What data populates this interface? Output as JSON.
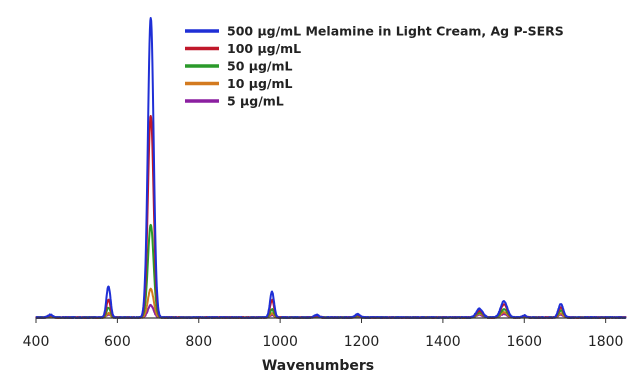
{
  "chart_data": {
    "type": "line",
    "xlabel": "Wavenumbers",
    "ylabel": "",
    "xlim": [
      400,
      1850
    ],
    "x_ticks": [
      400,
      600,
      800,
      1000,
      1200,
      1400,
      1600,
      1800
    ],
    "grid": false,
    "legend_position": "top-right",
    "peak_positions": [
      435,
      578,
      682,
      980,
      1090,
      1190,
      1490,
      1550,
      1600,
      1690
    ],
    "peak_widths": [
      6,
      5,
      7,
      5,
      6,
      6,
      8,
      8,
      5,
      6
    ],
    "series": [
      {
        "name": "500 µg/mL Melamine in Light Cream, Ag P-SERS",
        "color": "#1f2fd6",
        "peak_heights": [
          1.0,
          11.5,
          110,
          9.5,
          0.9,
          1.2,
          3.2,
          6.0,
          0.8,
          5.0
        ]
      },
      {
        "name": "100 µg/mL",
        "color": "#c0182a",
        "peak_heights": [
          0.8,
          6.5,
          74,
          6.5,
          0.7,
          0.9,
          2.5,
          4.8,
          0.6,
          3.8
        ]
      },
      {
        "name": "50 µg/mL",
        "color": "#2a9a2a",
        "peak_heights": [
          0.6,
          3.5,
          34,
          3.0,
          0.5,
          0.7,
          1.8,
          3.0,
          0.5,
          2.6
        ]
      },
      {
        "name": "10 µg/mL",
        "color": "#d37a1f",
        "peak_heights": [
          0.4,
          1.6,
          10.5,
          1.5,
          0.4,
          0.5,
          1.4,
          2.0,
          0.4,
          1.6
        ]
      },
      {
        "name": "5 µg/mL",
        "color": "#8b1fa0",
        "peak_heights": [
          0.3,
          1.0,
          4.5,
          1.0,
          0.3,
          0.4,
          1.0,
          1.3,
          0.3,
          1.1
        ]
      }
    ]
  }
}
